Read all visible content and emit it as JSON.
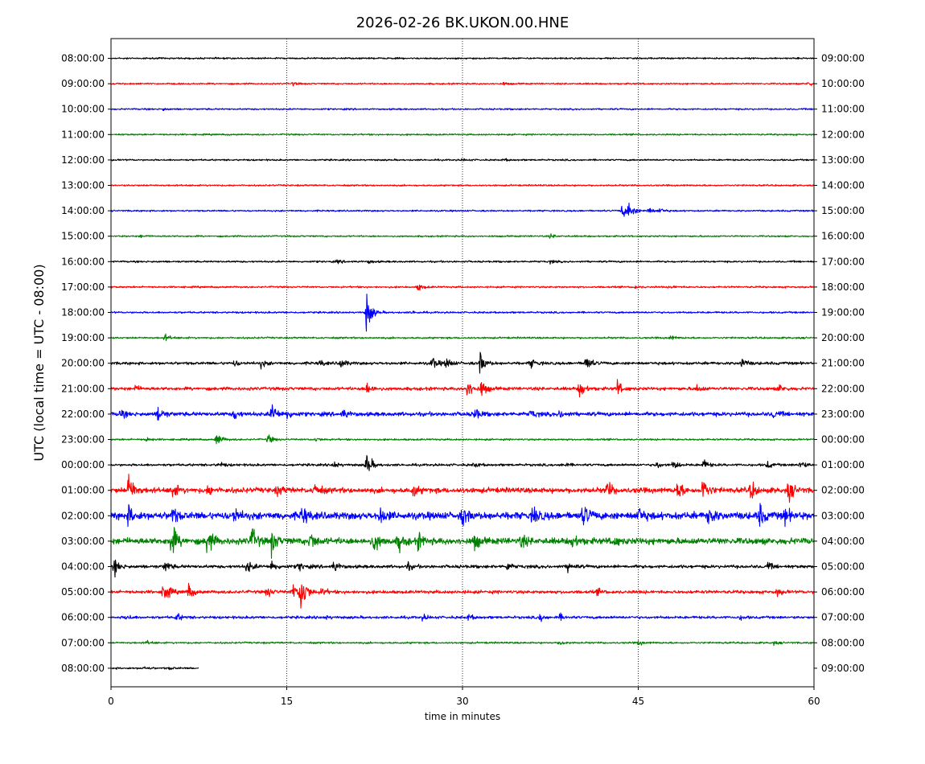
{
  "chart_data": {
    "type": "line",
    "title": "2026-02-26 BK.UKON.00.HNE",
    "xlabel": "time in minutes",
    "ylabel": "UTC (local time = UTC - 08:00)",
    "xlim": [
      0,
      60
    ],
    "x_ticks": [
      "0",
      "15",
      "30",
      "45",
      "60"
    ],
    "x_tick_values": [
      0,
      15,
      30,
      45,
      60
    ],
    "grid": "vertical dotted at 15, 30, 45",
    "trace_colors": [
      "#000000",
      "#ff0000",
      "#0000ff",
      "#008000"
    ],
    "left_labels": [
      "08:00:00",
      "09:00:00",
      "10:00:00",
      "11:00:00",
      "12:00:00",
      "13:00:00",
      "14:00:00",
      "15:00:00",
      "16:00:00",
      "17:00:00",
      "18:00:00",
      "19:00:00",
      "20:00:00",
      "21:00:00",
      "22:00:00",
      "23:00:00",
      "00:00:00",
      "01:00:00",
      "02:00:00",
      "03:00:00",
      "04:00:00",
      "05:00:00",
      "06:00:00",
      "07:00:00",
      "08:00:00"
    ],
    "right_labels": [
      "09:00:00",
      "10:00:00",
      "11:00:00",
      "12:00:00",
      "13:00:00",
      "14:00:00",
      "15:00:00",
      "16:00:00",
      "17:00:00",
      "18:00:00",
      "19:00:00",
      "20:00:00",
      "21:00:00",
      "22:00:00",
      "23:00:00",
      "00:00:00",
      "01:00:00",
      "02:00:00",
      "03:00:00",
      "04:00:00",
      "05:00:00",
      "06:00:00",
      "07:00:00",
      "08:00:00",
      "09:00:00"
    ],
    "traces": [
      {
        "noise": 0.8,
        "end": 60,
        "bursts": []
      },
      {
        "noise": 0.8,
        "end": 60,
        "bursts": [
          [
            15.5,
            1.5
          ],
          [
            33.5,
            1.4
          ],
          [
            59.5,
            2.5
          ]
        ]
      },
      {
        "noise": 0.8,
        "end": 60,
        "bursts": [
          [
            4.4,
            1.5
          ]
        ]
      },
      {
        "noise": 0.8,
        "end": 60,
        "bursts": []
      },
      {
        "noise": 0.8,
        "end": 60,
        "bursts": [
          [
            30,
            1.2
          ],
          [
            33.5,
            1.2
          ]
        ]
      },
      {
        "noise": 0.8,
        "end": 60,
        "bursts": []
      },
      {
        "noise": 0.8,
        "end": 60,
        "bursts": [
          [
            43.6,
            8
          ],
          [
            44.2,
            10
          ],
          [
            45.8,
            4
          ],
          [
            46.8,
            3
          ]
        ]
      },
      {
        "noise": 0.8,
        "end": 60,
        "bursts": [
          [
            2.5,
            1.2
          ],
          [
            37.5,
            2
          ]
        ]
      },
      {
        "noise": 0.9,
        "end": 60,
        "bursts": [
          [
            22,
            1.8
          ],
          [
            19.3,
            1.5
          ],
          [
            37.5,
            1.5
          ]
        ]
      },
      {
        "noise": 0.9,
        "end": 60,
        "bursts": [
          [
            26.2,
            4
          ],
          [
            44.6,
            1.5
          ],
          [
            47.8,
            1.5
          ]
        ]
      },
      {
        "noise": 0.9,
        "end": 60,
        "bursts": [
          [
            25.7,
            1.5
          ],
          [
            21.8,
            22
          ]
        ]
      },
      {
        "noise": 0.9,
        "end": 60,
        "bursts": [
          [
            4.6,
            3.5
          ],
          [
            47.7,
            2.5
          ]
        ]
      },
      {
        "noise": 1.4,
        "end": 60,
        "bursts": [
          [
            10.5,
            3
          ],
          [
            12.8,
            4
          ],
          [
            17.8,
            3
          ],
          [
            19.6,
            5
          ],
          [
            27.4,
            7
          ],
          [
            28.6,
            6
          ],
          [
            31.5,
            12
          ],
          [
            35.8,
            5
          ],
          [
            40.5,
            9
          ],
          [
            53.8,
            6
          ]
        ]
      },
      {
        "noise": 1.6,
        "end": 60,
        "bursts": [
          [
            2,
            3
          ],
          [
            21.8,
            8
          ],
          [
            30.4,
            11
          ],
          [
            31.6,
            9
          ],
          [
            40,
            10
          ],
          [
            43.2,
            8
          ],
          [
            50,
            4
          ],
          [
            57,
            4
          ]
        ]
      },
      {
        "noise": 2.0,
        "end": 60,
        "bursts": [
          [
            0.8,
            4
          ],
          [
            4,
            9
          ],
          [
            10.5,
            6
          ],
          [
            13.7,
            12
          ],
          [
            15,
            5
          ],
          [
            19.8,
            5
          ],
          [
            31,
            7
          ],
          [
            35.8,
            4
          ],
          [
            38.3,
            4
          ],
          [
            56.5,
            4
          ]
        ]
      },
      {
        "noise": 0.9,
        "end": 60,
        "bursts": [
          [
            3,
            2.2
          ],
          [
            9,
            8
          ],
          [
            13.4,
            5
          ],
          [
            17.4,
            2
          ]
        ]
      },
      {
        "noise": 1.2,
        "end": 60,
        "bursts": [
          [
            9.2,
            3
          ],
          [
            19,
            4
          ],
          [
            21.8,
            14
          ],
          [
            31,
            2.5
          ],
          [
            38.5,
            2.5
          ],
          [
            46.5,
            4
          ],
          [
            48,
            5
          ],
          [
            50.5,
            6
          ],
          [
            56,
            4
          ],
          [
            58.8,
            5
          ]
        ]
      },
      {
        "noise": 2.6,
        "end": 60,
        "bursts": [
          [
            1.5,
            20
          ],
          [
            5.2,
            10
          ],
          [
            8.3,
            6
          ],
          [
            14.2,
            5
          ],
          [
            17.4,
            8
          ],
          [
            25.8,
            6
          ],
          [
            42.3,
            10
          ],
          [
            48.3,
            12
          ],
          [
            50.5,
            14
          ],
          [
            54.6,
            10
          ],
          [
            57.8,
            12
          ]
        ]
      },
      {
        "noise": 3.6,
        "end": 60,
        "bursts": [
          [
            1.5,
            10
          ],
          [
            5.2,
            9
          ],
          [
            10.5,
            8
          ],
          [
            16.3,
            10
          ],
          [
            23,
            9
          ],
          [
            30,
            10
          ],
          [
            36,
            10
          ],
          [
            40.3,
            12
          ],
          [
            45,
            9
          ],
          [
            51,
            11
          ],
          [
            55.3,
            12
          ],
          [
            57.5,
            8
          ]
        ]
      },
      {
        "noise": 3.2,
        "end": 60,
        "bursts": [
          [
            5.1,
            22
          ],
          [
            8.2,
            16
          ],
          [
            12,
            14
          ],
          [
            13.7,
            12
          ],
          [
            17,
            10
          ],
          [
            22.4,
            12
          ],
          [
            24.5,
            10
          ],
          [
            26.2,
            8
          ],
          [
            31,
            8
          ],
          [
            35,
            6
          ],
          [
            39.4,
            7
          ],
          [
            42.8,
            6
          ]
        ]
      },
      {
        "noise": 1.6,
        "end": 60,
        "bursts": [
          [
            0.3,
            8
          ],
          [
            4.6,
            6
          ],
          [
            11.6,
            8
          ],
          [
            13.7,
            6
          ],
          [
            16,
            5
          ],
          [
            19,
            6
          ],
          [
            25.3,
            4
          ],
          [
            33.8,
            4
          ],
          [
            39,
            5
          ],
          [
            56,
            4
          ]
        ]
      },
      {
        "noise": 1.6,
        "end": 60,
        "bursts": [
          [
            4.5,
            14
          ],
          [
            6.6,
            8
          ],
          [
            13.3,
            6
          ],
          [
            15.5,
            10
          ],
          [
            16.2,
            26
          ],
          [
            18,
            4
          ],
          [
            41.5,
            3
          ],
          [
            56.8,
            4
          ]
        ]
      },
      {
        "noise": 1.3,
        "end": 60,
        "bursts": [
          [
            1.3,
            3
          ],
          [
            5.6,
            4
          ],
          [
            18.3,
            2
          ],
          [
            26.6,
            3
          ],
          [
            30.5,
            3
          ],
          [
            36.6,
            4
          ],
          [
            38.3,
            3
          ],
          [
            53.7,
            2
          ]
        ]
      },
      {
        "noise": 0.9,
        "end": 60,
        "bursts": [
          [
            3,
            2
          ],
          [
            38.3,
            3
          ],
          [
            45,
            2.5
          ],
          [
            56.5,
            2
          ]
        ]
      },
      {
        "noise": 0.9,
        "end": 7.5,
        "bursts": [
          [
            2.8,
            1.5
          ],
          [
            5,
            1.2
          ]
        ]
      }
    ]
  }
}
